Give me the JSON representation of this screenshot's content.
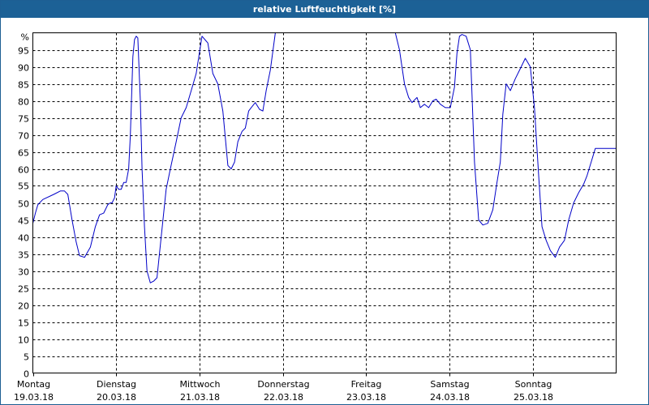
{
  "title": "relative Luftfeuchtigkeit [%]",
  "colors": {
    "titlebar": "#1c6196",
    "line": "#0000c8",
    "grid": "#000000"
  },
  "chart_data": {
    "type": "line",
    "title": "relative Luftfeuchtigkeit [%]",
    "y_unit_label": "%",
    "ylim": [
      0,
      100
    ],
    "yticks": [
      0,
      5,
      10,
      15,
      20,
      25,
      30,
      35,
      40,
      45,
      50,
      55,
      60,
      65,
      70,
      75,
      80,
      85,
      90,
      95
    ],
    "xlim": [
      0,
      7
    ],
    "grid": true,
    "days": [
      {
        "weekday": "Montag",
        "date": "19.03.18"
      },
      {
        "weekday": "Dienstag",
        "date": "20.03.18"
      },
      {
        "weekday": "Mittwoch",
        "date": "21.03.18"
      },
      {
        "weekday": "Donnerstag",
        "date": "22.03.18"
      },
      {
        "weekday": "Freitag",
        "date": "23.03.18"
      },
      {
        "weekday": "Samstag",
        "date": "24.03.18"
      },
      {
        "weekday": "Sonntag",
        "date": "25.03.18"
      }
    ],
    "series": [
      {
        "x": [
          0.0,
          0.03,
          0.06,
          0.12,
          0.25,
          0.33,
          0.38,
          0.42,
          0.47,
          0.52,
          0.56,
          0.62,
          0.69,
          0.75,
          0.8,
          0.85,
          0.9,
          0.93,
          0.95,
          0.98,
          1.0,
          1.03,
          1.06,
          1.09,
          1.12,
          1.15,
          1.17,
          1.2,
          1.22,
          1.24,
          1.26,
          1.29,
          1.31,
          1.34,
          1.37,
          1.41,
          1.45,
          1.49,
          1.54,
          1.6,
          1.65,
          1.72,
          1.78,
          1.84,
          1.9,
          1.96,
          2.03,
          2.1,
          2.16,
          2.22,
          2.28,
          2.34,
          2.38,
          2.42,
          2.46,
          2.51,
          2.55,
          2.59,
          2.62,
          2.67,
          2.72,
          2.76,
          2.8,
          2.85,
          2.91,
          2.97,
          3.02,
          3.07,
          3.12,
          3.17,
          3.22,
          3.27,
          3.33,
          3.37,
          3.42,
          4.35,
          4.4,
          4.46,
          4.51,
          4.55,
          4.61,
          4.65,
          4.7,
          4.75,
          4.8,
          4.84,
          4.89,
          4.95,
          5.01,
          5.06,
          5.09,
          5.12,
          5.15,
          5.2,
          5.25,
          5.3,
          5.35,
          5.4,
          5.46,
          5.52,
          5.57,
          5.61,
          5.64,
          5.68,
          5.73,
          5.79,
          5.85,
          5.91,
          5.97,
          6.02,
          6.07,
          6.11,
          6.16,
          6.21,
          6.27,
          6.32,
          6.38,
          6.43,
          6.49,
          6.55,
          6.61,
          6.65,
          6.7,
          6.75,
          6.8,
          6.86,
          6.92,
          6.97,
          7.0
        ],
        "y": [
          44,
          47,
          49.5,
          51,
          52.5,
          53.5,
          53.5,
          52.5,
          45,
          38.5,
          34.5,
          34,
          37,
          43,
          46.5,
          47,
          49.5,
          50,
          50,
          51.5,
          55,
          54,
          54,
          56,
          56,
          60,
          70,
          93,
          98,
          99,
          98.5,
          80,
          60,
          43,
          30,
          26.5,
          27,
          28,
          40,
          54,
          60,
          68,
          75,
          78,
          83,
          88,
          99,
          97,
          88,
          85,
          77,
          61,
          60,
          62,
          68,
          71,
          72,
          77,
          78,
          79.5,
          77.5,
          77,
          83,
          89,
          100,
          100,
          100,
          100,
          100,
          100,
          100,
          100,
          100,
          100,
          100,
          100,
          95,
          85,
          81,
          79.5,
          81,
          78,
          79,
          78,
          80,
          80.5,
          79,
          78,
          78,
          84,
          94,
          99,
          99.5,
          99,
          95,
          62,
          45,
          43.5,
          44,
          48,
          56,
          62,
          76,
          85,
          83,
          86.5,
          89.5,
          92.5,
          90,
          78,
          58,
          43,
          39,
          36,
          34,
          37,
          39,
          45,
          50,
          53,
          55.5,
          58,
          62,
          66,
          66,
          66,
          66,
          66,
          66
        ]
      }
    ]
  }
}
